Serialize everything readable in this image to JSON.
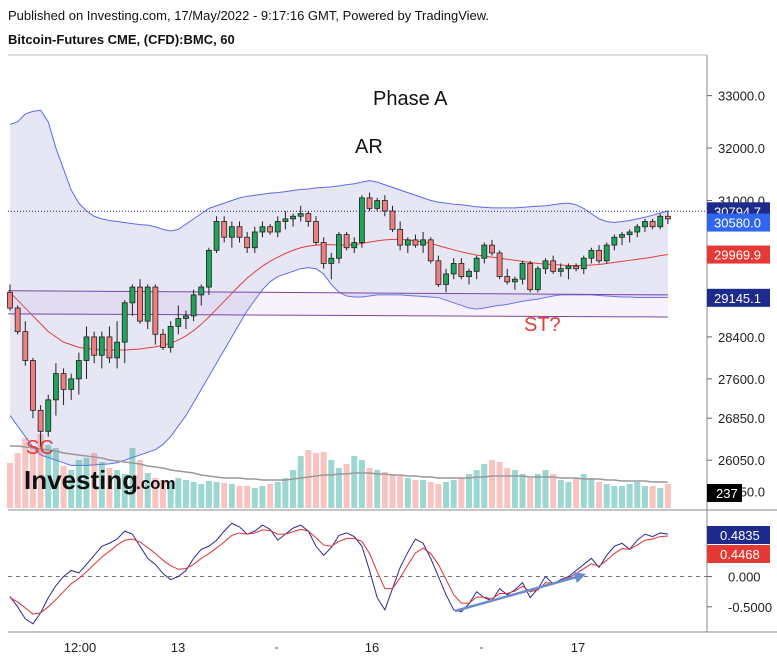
{
  "header": {
    "published": "Published on Investing.com, 17/May/2022 - 9:17:16 GMT, Powered by TradingView.",
    "instrument": "Bitcoin-Futures CME, (CFD):BMC, 60"
  },
  "logo": {
    "brand": "Investing",
    "suffix": ".com"
  },
  "annotations": {
    "phase": "Phase A",
    "ar": "AR",
    "sc": "SC",
    "st": "ST?"
  },
  "colors": {
    "up": "#26a69a",
    "down": "#ef5350",
    "band_fill": "#e6e6f4",
    "band_line": "#5c6bf0",
    "ma": "#e04040",
    "support": "#7a3fa0",
    "osc_fast": "#2b2b9a",
    "osc_slow": "#e03030",
    "arrow": "#6b8ccc"
  },
  "chart_data": [
    {
      "type": "candlestick",
      "title": "Bitcoin-Futures CME, (CFD):BMC, 60",
      "x_ticks": [
        "12:00",
        "13",
        "16",
        "17"
      ],
      "y_ticks": [
        "33000.0",
        "32000.0",
        "31000.0",
        "28400.0",
        "27600.0",
        "26850.0",
        "26050.0",
        "25450.0"
      ],
      "ylim": [
        25100,
        33450
      ],
      "price_tags": [
        {
          "label": "30794.7",
          "value": 30794.7,
          "color": "#1e2a8c"
        },
        {
          "label": "30580.0",
          "value": 30580.0,
          "color": "#2f66f0"
        },
        {
          "label": "29969.9",
          "value": 29969.9,
          "color": "#e53935"
        },
        {
          "label": "29145.1",
          "value": 29145.1,
          "color": "#1e2a8c"
        }
      ],
      "support_lines": [
        {
          "from": [
            0,
            29280
          ],
          "to": [
            86,
            29200
          ]
        },
        {
          "from": [
            0,
            28840
          ],
          "to": [
            86,
            28780
          ]
        }
      ],
      "candles": [
        [
          29250,
          29400,
          28900,
          28950
        ],
        [
          28950,
          29000,
          28450,
          28500
        ],
        [
          28500,
          28700,
          27850,
          27950
        ],
        [
          27950,
          28000,
          26850,
          27000
        ],
        [
          27000,
          27100,
          26300,
          26600
        ],
        [
          26600,
          27300,
          26500,
          27200
        ],
        [
          27200,
          27900,
          26900,
          27700
        ],
        [
          27700,
          27800,
          27100,
          27400
        ],
        [
          27400,
          27700,
          27200,
          27600
        ],
        [
          27600,
          28100,
          27300,
          27950
        ],
        [
          27950,
          28600,
          27600,
          28400
        ],
        [
          28400,
          28500,
          27900,
          28050
        ],
        [
          28050,
          28500,
          27800,
          28400
        ],
        [
          28400,
          28600,
          27900,
          28000
        ],
        [
          28000,
          28700,
          27800,
          28300
        ],
        [
          28300,
          29100,
          27900,
          29050
        ],
        [
          29050,
          29400,
          28800,
          29350
        ],
        [
          29350,
          29500,
          28650,
          28700
        ],
        [
          28700,
          29400,
          28550,
          29350
        ],
        [
          29350,
          29400,
          28250,
          28450
        ],
        [
          28450,
          28550,
          28150,
          28200
        ],
        [
          28200,
          28700,
          28100,
          28600
        ],
        [
          28600,
          29000,
          28450,
          28750
        ],
        [
          28750,
          28900,
          28550,
          28800
        ],
        [
          28800,
          29300,
          28700,
          29200
        ],
        [
          29200,
          29400,
          29000,
          29350
        ],
        [
          29350,
          30100,
          29200,
          30050
        ],
        [
          30050,
          30700,
          30000,
          30600
        ],
        [
          30600,
          30700,
          30200,
          30300
        ],
        [
          30300,
          30600,
          30100,
          30500
        ],
        [
          30500,
          30600,
          30200,
          30300
        ],
        [
          30300,
          30400,
          30000,
          30100
        ],
        [
          30100,
          30500,
          30000,
          30400
        ],
        [
          30400,
          30600,
          30300,
          30500
        ],
        [
          30500,
          30550,
          30350,
          30400
        ],
        [
          30400,
          30700,
          30300,
          30600
        ],
        [
          30600,
          30800,
          30450,
          30650
        ],
        [
          30650,
          30750,
          30500,
          30700
        ],
        [
          30700,
          30900,
          30600,
          30750
        ],
        [
          30750,
          30800,
          30500,
          30600
        ],
        [
          30600,
          30700,
          30150,
          30200
        ],
        [
          30200,
          30300,
          29700,
          29800
        ],
        [
          29800,
          30000,
          29500,
          29900
        ],
        [
          29900,
          30400,
          29800,
          30350
        ],
        [
          30350,
          30400,
          30050,
          30100
        ],
        [
          30100,
          30300,
          30000,
          30200
        ],
        [
          30200,
          31100,
          30100,
          31050
        ],
        [
          31050,
          31150,
          30800,
          30850
        ],
        [
          30850,
          31050,
          30800,
          31000
        ],
        [
          31000,
          31100,
          30700,
          30800
        ],
        [
          30800,
          30900,
          30400,
          30450
        ],
        [
          30450,
          30600,
          30050,
          30150
        ],
        [
          30150,
          30300,
          30000,
          30250
        ],
        [
          30250,
          30350,
          30100,
          30150
        ],
        [
          30150,
          30400,
          30000,
          30250
        ],
        [
          30250,
          30300,
          29800,
          29850
        ],
        [
          29850,
          29950,
          29350,
          29400
        ],
        [
          29400,
          29700,
          29250,
          29600
        ],
        [
          29600,
          29900,
          29500,
          29800
        ],
        [
          29800,
          29900,
          29500,
          29550
        ],
        [
          29550,
          29700,
          29400,
          29650
        ],
        [
          29650,
          29950,
          29500,
          29900
        ],
        [
          29900,
          30200,
          29800,
          30150
        ],
        [
          30150,
          30250,
          29950,
          30000
        ],
        [
          30000,
          30050,
          29500,
          29550
        ],
        [
          29550,
          29700,
          29400,
          29450
        ],
        [
          29450,
          29550,
          29300,
          29500
        ],
        [
          29500,
          29850,
          29400,
          29800
        ],
        [
          29800,
          29850,
          29250,
          29300
        ],
        [
          29300,
          29750,
          29250,
          29700
        ],
        [
          29700,
          29900,
          29600,
          29850
        ],
        [
          29850,
          29950,
          29600,
          29650
        ],
        [
          29650,
          29800,
          29550,
          29700
        ],
        [
          29700,
          29800,
          29500,
          29750
        ],
        [
          29750,
          29800,
          29650,
          29700
        ],
        [
          29700,
          29950,
          29600,
          29900
        ],
        [
          29900,
          30100,
          29800,
          30050
        ],
        [
          30050,
          30150,
          29800,
          29850
        ],
        [
          29850,
          30200,
          29800,
          30150
        ],
        [
          30150,
          30350,
          30050,
          30300
        ],
        [
          30300,
          30400,
          30150,
          30350
        ],
        [
          30350,
          30450,
          30200,
          30400
        ],
        [
          30400,
          30550,
          30300,
          30500
        ],
        [
          30500,
          30650,
          30400,
          30600
        ],
        [
          30600,
          30650,
          30450,
          30500
        ],
        [
          30500,
          30750,
          30450,
          30700
        ],
        [
          30700,
          30800,
          30550,
          30650
        ]
      ],
      "bollinger_upper": [
        32450,
        32500,
        32650,
        32700,
        32720,
        32500,
        32000,
        31600,
        31200,
        30950,
        30800,
        30700,
        30650,
        30620,
        30600,
        30580,
        30560,
        30540,
        30530,
        30500,
        30450,
        30420,
        30450,
        30550,
        30650,
        30750,
        30850,
        30900,
        30950,
        31000,
        31050,
        31080,
        31100,
        31120,
        31140,
        31150,
        31170,
        31190,
        31210,
        31220,
        31240,
        31250,
        31260,
        31280,
        31300,
        31320,
        31350,
        31380,
        31350,
        31300,
        31250,
        31200,
        31150,
        31100,
        31050,
        31000,
        30970,
        30950,
        30930,
        30920,
        30900,
        30880,
        30870,
        30860,
        30860,
        30860,
        30860,
        30870,
        30880,
        30890,
        30900,
        30920,
        30940,
        30950,
        30920,
        30850,
        30750,
        30650,
        30600,
        30580,
        30600,
        30620,
        30650,
        30680,
        30720,
        30760,
        30800
      ],
      "bollinger_lower": [
        26900,
        26700,
        26500,
        26300,
        26150,
        26100,
        26050,
        26000,
        25950,
        25950,
        25950,
        25960,
        25970,
        25980,
        26000,
        26050,
        26100,
        26150,
        26200,
        26250,
        26350,
        26500,
        26700,
        26900,
        27150,
        27400,
        27650,
        27900,
        28150,
        28400,
        28650,
        28900,
        29100,
        29300,
        29450,
        29550,
        29600,
        29650,
        29700,
        29720,
        29700,
        29600,
        29400,
        29250,
        29180,
        29160,
        29160,
        29180,
        29200,
        29200,
        29200,
        29200,
        29190,
        29180,
        29170,
        29160,
        29150,
        29100,
        29050,
        29000,
        28950,
        28930,
        28950,
        28980,
        29000,
        29020,
        29050,
        29080,
        29100,
        29120,
        29150,
        29180,
        29200,
        29200,
        29200,
        29200,
        29200,
        29190,
        29180,
        29170,
        29160,
        29160,
        29150,
        29150,
        29150,
        29150,
        29150
      ],
      "moving_average": [
        29250,
        29100,
        28950,
        28800,
        28650,
        28500,
        28400,
        28300,
        28250,
        28200,
        28180,
        28160,
        28150,
        28150,
        28150,
        28150,
        28160,
        28170,
        28190,
        28210,
        28240,
        28280,
        28340,
        28420,
        28520,
        28640,
        28780,
        28930,
        29080,
        29230,
        29380,
        29520,
        29640,
        29750,
        29840,
        29920,
        29990,
        30050,
        30100,
        30130,
        30150,
        30160,
        30160,
        30150,
        30150,
        30160,
        30180,
        30210,
        30230,
        30250,
        30260,
        30260,
        30250,
        30230,
        30210,
        30180,
        30140,
        30100,
        30060,
        30020,
        29990,
        29960,
        29940,
        29920,
        29900,
        29880,
        29860,
        29840,
        29820,
        29800,
        29790,
        29780,
        29770,
        29760,
        29760,
        29760,
        29770,
        29780,
        29800,
        29820,
        29840,
        29860,
        29880,
        29900,
        29920,
        29950,
        29970
      ],
      "volume": [
        45,
        55,
        70,
        62,
        74,
        63,
        60,
        42,
        38,
        48,
        50,
        55,
        46,
        40,
        38,
        34,
        60,
        48,
        35,
        30,
        28,
        26,
        30,
        28,
        26,
        24,
        27,
        26,
        25,
        24,
        22,
        22,
        20,
        22,
        24,
        26,
        30,
        38,
        52,
        58,
        55,
        56,
        48,
        40,
        44,
        52,
        48,
        40,
        38,
        36,
        34,
        32,
        30,
        28,
        28,
        26,
        24,
        26,
        28,
        30,
        34,
        38,
        44,
        48,
        46,
        40,
        38,
        34,
        30,
        34,
        38,
        34,
        28,
        26,
        30,
        34,
        30,
        26,
        24,
        22,
        22,
        24,
        26,
        22,
        22,
        20,
        24
      ],
      "volume_ma": [
        62,
        62,
        61,
        60,
        59,
        58,
        57,
        55,
        54,
        53,
        52,
        51,
        50,
        48,
        47,
        46,
        45,
        44,
        42,
        41,
        40,
        38,
        37,
        36,
        35,
        33,
        32,
        31,
        30,
        30,
        30,
        29,
        29,
        28,
        28,
        28,
        28,
        29,
        30,
        31,
        32,
        33,
        33,
        34,
        34,
        35,
        35,
        35,
        34,
        34,
        33,
        33,
        32,
        32,
        31,
        31,
        30,
        30,
        30,
        30,
        30,
        31,
        31,
        32,
        32,
        32,
        32,
        32,
        31,
        31,
        31,
        31,
        30,
        30,
        30,
        29,
        29,
        29,
        28,
        28,
        27,
        27,
        27,
        27,
        26,
        26,
        26
      ],
      "volume_tag": "237",
      "oscillator_ticks": [
        "0.000",
        "-0.5000"
      ],
      "oscillator_tags": [
        {
          "label": "0.4835",
          "value": 0.4835,
          "color": "#1e2a8c"
        },
        {
          "label": "0.4468",
          "value": 0.4468,
          "color": "#e53935"
        }
      ],
      "oscillator_ylim": [
        -0.85,
        1.0
      ],
      "oscillator_fast": [
        -0.33,
        -0.5,
        -0.7,
        -0.78,
        -0.6,
        -0.35,
        -0.15,
        0.0,
        0.1,
        0.06,
        0.2,
        0.35,
        0.5,
        0.55,
        0.62,
        0.75,
        0.7,
        0.5,
        0.3,
        0.2,
        0.05,
        -0.05,
        0.0,
        0.1,
        0.3,
        0.45,
        0.5,
        0.6,
        0.75,
        0.88,
        0.82,
        0.7,
        0.75,
        0.85,
        0.78,
        0.6,
        0.7,
        0.8,
        0.85,
        0.75,
        0.5,
        0.35,
        0.48,
        0.68,
        0.72,
        0.66,
        0.5,
        0.1,
        -0.35,
        -0.55,
        -0.2,
        0.15,
        0.4,
        0.62,
        0.55,
        0.3,
        0.0,
        -0.3,
        -0.55,
        -0.58,
        -0.45,
        -0.25,
        -0.35,
        -0.4,
        -0.2,
        -0.3,
        -0.22,
        -0.1,
        -0.35,
        -0.2,
        0.0,
        -0.12,
        -0.05,
        0.0,
        0.1,
        0.2,
        0.3,
        0.15,
        0.35,
        0.5,
        0.55,
        0.45,
        0.6,
        0.7,
        0.66,
        0.72,
        0.7
      ],
      "oscillator_slow": [
        -0.35,
        -0.42,
        -0.52,
        -0.62,
        -0.6,
        -0.5,
        -0.38,
        -0.25,
        -0.12,
        -0.03,
        0.08,
        0.2,
        0.32,
        0.42,
        0.52,
        0.6,
        0.62,
        0.57,
        0.48,
        0.38,
        0.27,
        0.18,
        0.12,
        0.13,
        0.2,
        0.3,
        0.38,
        0.47,
        0.57,
        0.68,
        0.72,
        0.7,
        0.72,
        0.77,
        0.76,
        0.7,
        0.7,
        0.74,
        0.78,
        0.75,
        0.64,
        0.52,
        0.5,
        0.58,
        0.63,
        0.63,
        0.58,
        0.38,
        0.08,
        -0.2,
        -0.2,
        -0.02,
        0.19,
        0.39,
        0.47,
        0.38,
        0.2,
        -0.05,
        -0.3,
        -0.44,
        -0.44,
        -0.34,
        -0.34,
        -0.37,
        -0.28,
        -0.28,
        -0.24,
        -0.16,
        -0.25,
        -0.22,
        -0.1,
        -0.11,
        -0.07,
        -0.02,
        0.05,
        0.13,
        0.21,
        0.17,
        0.27,
        0.38,
        0.46,
        0.45,
        0.52,
        0.6,
        0.62,
        0.66,
        0.67
      ]
    }
  ]
}
